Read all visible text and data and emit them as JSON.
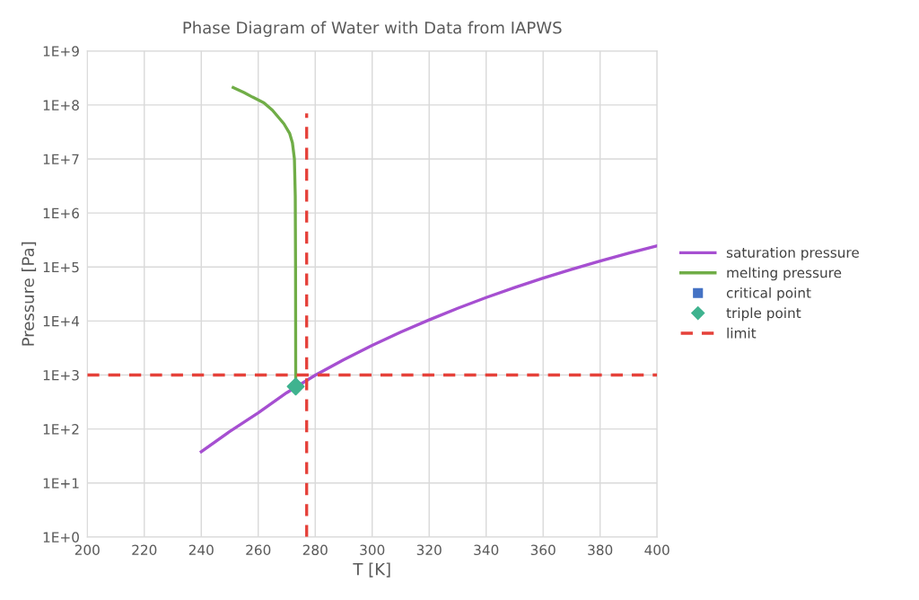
{
  "chart_data": {
    "type": "line",
    "title": "Phase Diagram of Water with Data from IAPWS",
    "xlabel": "T [K]",
    "ylabel": "Pressure [Pa]",
    "log": "y",
    "grid": true,
    "legend": "right",
    "xlim": [
      200,
      400
    ],
    "xticks": [
      200,
      220,
      240,
      260,
      280,
      300,
      320,
      340,
      360,
      380,
      400
    ],
    "ylim": [
      1,
      1000000000
    ],
    "yticks": [
      {
        "value": 1,
        "label": "1E+0"
      },
      {
        "value": 10,
        "label": "1E+1"
      },
      {
        "value": 100,
        "label": "1E+2"
      },
      {
        "value": 1000,
        "label": "1E+3"
      },
      {
        "value": 10000,
        "label": "1E+4"
      },
      {
        "value": 100000,
        "label": "1E+5"
      },
      {
        "value": 1000000,
        "label": "1E+6"
      },
      {
        "value": 10000000,
        "label": "1E+7"
      },
      {
        "value": 100000000,
        "label": "1E+8"
      },
      {
        "value": 1000000000,
        "label": "1E+9"
      }
    ],
    "series": [
      {
        "name": "saturation pressure",
        "color": "#a64fd1",
        "line_style": "solid",
        "marker": "none",
        "x": [
          240,
          250,
          260,
          270,
          280,
          290,
          300,
          310,
          320,
          330,
          340,
          350,
          360,
          370,
          380,
          390,
          400
        ],
        "values": [
          38,
          90,
          200,
          470,
          990,
          1920,
          3540,
          6230,
          10500,
          17200,
          27200,
          41700,
          62200,
          90500,
          129000,
          180000,
          246000
        ]
      },
      {
        "name": "melting pressure",
        "color": "#70ad47",
        "line_style": "solid",
        "marker": "none",
        "x": [
          273.16,
          273.1,
          273,
          272.7,
          272,
          271,
          269,
          267,
          265,
          262,
          258,
          255,
          251.2
        ],
        "values": [
          612,
          100000,
          2000000,
          10000000,
          20000000,
          30000000,
          45000000,
          60000000,
          80000000,
          110000000,
          140000000,
          170000000,
          210000000
        ]
      },
      {
        "name": "critical point",
        "type": "scatter",
        "color": "#4472c4",
        "marker": "square"
      },
      {
        "name": "triple point",
        "type": "scatter",
        "color": "#3fb38f",
        "marker": "diamond",
        "x": [
          273.16
        ],
        "values": [
          612
        ]
      },
      {
        "name": "limit",
        "type": "line",
        "color": "#e5413a",
        "line_style": "dashed",
        "marker": "none",
        "x": [
          200,
          400,
          null,
          277,
          277
        ],
        "values": [
          1000,
          1000,
          null,
          1,
          70000000
        ]
      }
    ]
  }
}
